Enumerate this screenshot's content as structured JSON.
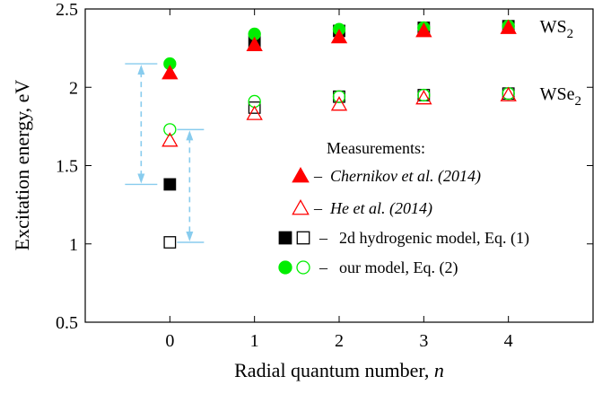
{
  "chart_data": {
    "type": "scatter",
    "xlabel": "Radial quantum number,",
    "xlabel_var": "n",
    "ylabel": "Excitation energy, eV",
    "xlim": [
      -1,
      5
    ],
    "ylim": [
      0.5,
      2.5
    ],
    "xticks": [
      0,
      1,
      2,
      3,
      4
    ],
    "yticks": [
      0.5,
      1,
      1.5,
      2,
      2.5
    ],
    "ytick_labels": [
      "0.5",
      "1",
      "1.5",
      "2",
      "2.5"
    ],
    "grid": false,
    "series_labels": [
      {
        "text": "WS",
        "sub": "2",
        "x": 4,
        "y": 2.39
      },
      {
        "text": "WSe",
        "sub": "2",
        "x": 4,
        "y": 1.96
      }
    ],
    "series": [
      {
        "name": "Chernikov et al. (2014)",
        "marker": "triangle",
        "fill": "filled",
        "color": "#ff0000",
        "points": [
          [
            0,
            2.09
          ],
          [
            1,
            2.27
          ],
          [
            2,
            2.32
          ],
          [
            3,
            2.36
          ],
          [
            4,
            2.38
          ]
        ]
      },
      {
        "name": "He et al. (2014)",
        "marker": "triangle",
        "fill": "open",
        "color": "#ff0000",
        "points": [
          [
            0,
            1.66
          ],
          [
            1,
            1.83
          ],
          [
            2,
            1.89
          ],
          [
            3,
            1.93
          ],
          [
            4,
            1.95
          ]
        ]
      },
      {
        "name": "2d hydrogenic model, Eq. (1) WS2",
        "marker": "square",
        "fill": "filled",
        "color": "#000000",
        "points": [
          [
            0,
            1.38
          ],
          [
            1,
            2.29
          ],
          [
            2,
            2.36
          ],
          [
            3,
            2.38
          ],
          [
            4,
            2.39
          ]
        ]
      },
      {
        "name": "2d hydrogenic model, Eq. (1) WSe2",
        "marker": "square",
        "fill": "open",
        "color": "#000000",
        "points": [
          [
            0,
            1.01
          ],
          [
            1,
            1.87
          ],
          [
            2,
            1.94
          ],
          [
            3,
            1.95
          ],
          [
            4,
            1.96
          ]
        ]
      },
      {
        "name": "our model, Eq. (2) WS2",
        "marker": "circle",
        "fill": "filled",
        "color": "#00ee00",
        "points": [
          [
            0,
            2.15
          ],
          [
            1,
            2.34
          ],
          [
            2,
            2.37
          ],
          [
            3,
            2.38
          ],
          [
            4,
            2.39
          ]
        ]
      },
      {
        "name": "our model, Eq. (2) WSe2",
        "marker": "circle",
        "fill": "open",
        "color": "#00ee00",
        "points": [
          [
            0,
            1.73
          ],
          [
            1,
            1.91
          ],
          [
            2,
            1.94
          ],
          [
            3,
            1.95
          ],
          [
            4,
            1.96
          ]
        ]
      }
    ],
    "arrows": [
      {
        "x": 0,
        "y_top": 2.15,
        "y_bottom": 1.38,
        "color": "#88ccee"
      },
      {
        "x": 0,
        "y_top": 1.73,
        "y_bottom": 1.01,
        "color": "#88ccee"
      }
    ],
    "legend": {
      "title": "Measurements:",
      "position": "center-right",
      "entries": [
        {
          "markers": [
            {
              "marker": "triangle",
              "fill": "filled",
              "color": "#ff0000"
            }
          ],
          "dash": "–",
          "label": "Chernikov et al. (2014)",
          "italic": true
        },
        {
          "markers": [
            {
              "marker": "triangle",
              "fill": "open",
              "color": "#ff0000"
            }
          ],
          "dash": "–",
          "label": "He et al. (2014)",
          "italic": true
        },
        {
          "markers": [
            {
              "marker": "square",
              "fill": "filled",
              "color": "#000000"
            },
            {
              "marker": "square",
              "fill": "open",
              "color": "#000000"
            }
          ],
          "dash": "–",
          "label": "2d hydrogenic model, Eq. (1)",
          "italic": false
        },
        {
          "markers": [
            {
              "marker": "circle",
              "fill": "filled",
              "color": "#00ee00"
            },
            {
              "marker": "circle",
              "fill": "open",
              "color": "#00ee00"
            }
          ],
          "dash": "–",
          "label": "our model, Eq. (2)",
          "italic": false
        }
      ]
    }
  }
}
